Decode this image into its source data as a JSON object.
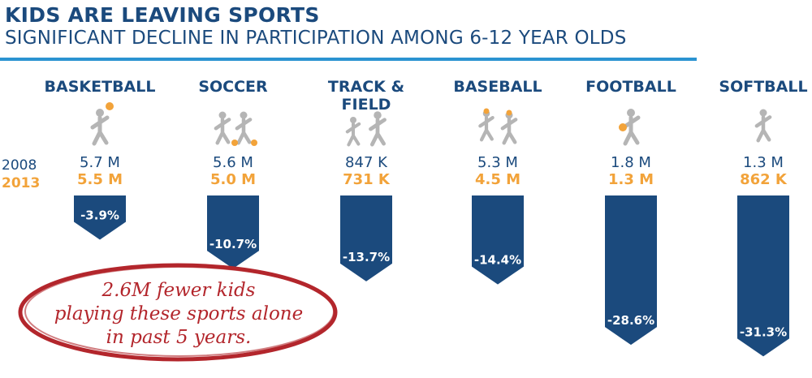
{
  "title": "KIDS ARE LEAVING SPORTS",
  "subtitle": "SIGNIFICANT DECLINE IN PARTICIPATION AMONG 6-12 YEAR OLDS",
  "legend": {
    "year1": "2008",
    "year2": "2013"
  },
  "callout": {
    "line1": "2.6M fewer kids",
    "line2": "playing these sports alone",
    "line3": "in past 5 years."
  },
  "colors": {
    "navy": "#1b4a7d",
    "orange": "#f2a33a",
    "accent": "#2b93d1",
    "red": "#b3262c",
    "icon_gray": "#b5b5b5"
  },
  "chart_data": {
    "type": "bar",
    "categories": [
      "BASKETBALL",
      "SOCCER",
      "TRACK & FIELD",
      "BASEBALL",
      "FOOTBALL",
      "SOFTBALL"
    ],
    "values_2008": [
      "5.7 M",
      "5.6 M",
      "847 K",
      "5.3 M",
      "1.8 M",
      "1.3 M"
    ],
    "values_2013": [
      "5.5 M",
      "5.0 M",
      "731 K",
      "4.5 M",
      "1.3 M",
      "862 K"
    ],
    "percent_change": [
      -3.9,
      -10.7,
      -13.7,
      -14.4,
      -28.6,
      -31.3
    ],
    "percent_labels": [
      "-3.9%",
      "-10.7%",
      "-13.7%",
      "-14.4%",
      "-28.6%",
      "-31.3%"
    ],
    "icons": [
      "basketball-player-icon",
      "soccer-players-icon",
      "track-runners-icon",
      "baseball-players-icon",
      "football-player-icon",
      "softball-batter-icon"
    ]
  }
}
